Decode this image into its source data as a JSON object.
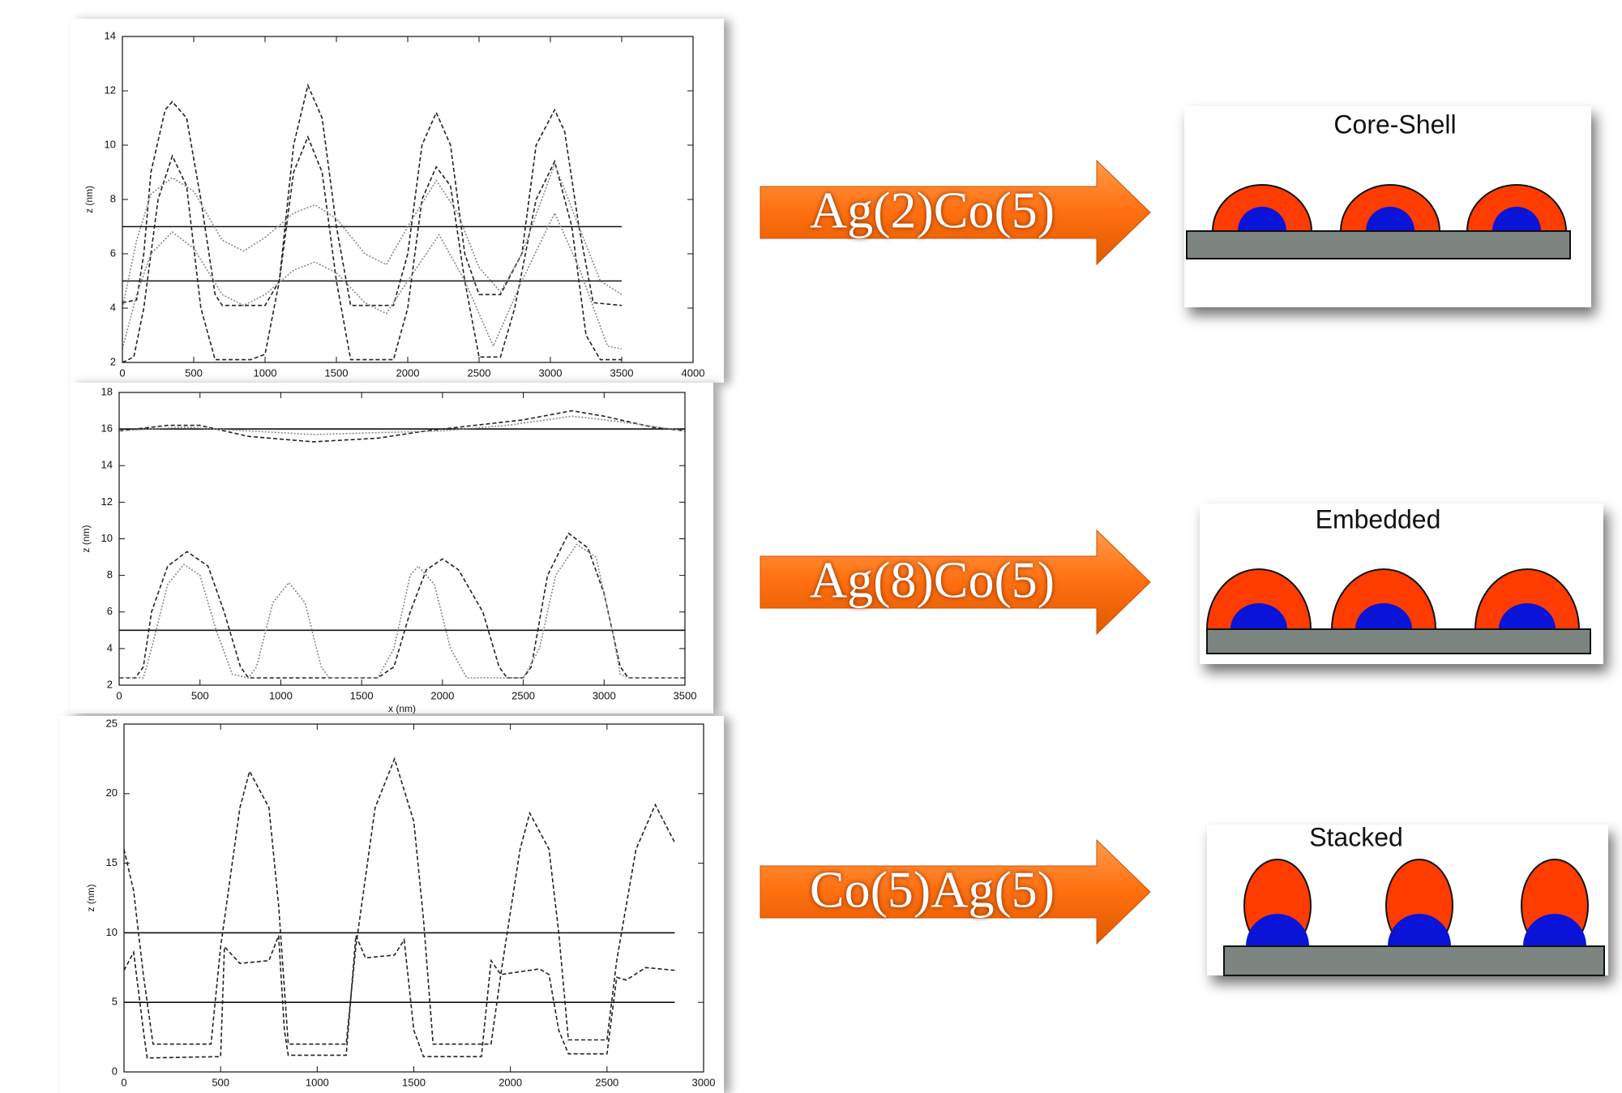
{
  "chart_data": [
    {
      "type": "line",
      "ylabel": "z (nm)",
      "xlim": [
        0,
        4000
      ],
      "ylim": [
        2,
        14
      ],
      "xticks": [
        0,
        500,
        1000,
        1500,
        2000,
        2500,
        3000,
        3500,
        4000
      ],
      "yticks": [
        2,
        4,
        6,
        8,
        10,
        12,
        14
      ],
      "series": [
        {
          "color": "#111111",
          "dash": "solid",
          "x": [
            0,
            3500
          ],
          "values": [
            7,
            7
          ]
        },
        {
          "color": "#111111",
          "dash": "solid",
          "x": [
            0,
            3500
          ],
          "values": [
            5,
            5
          ]
        },
        {
          "color": "#222222",
          "dash": "dashed",
          "x": [
            0,
            100,
            150,
            200,
            300,
            350,
            450,
            550,
            650,
            700,
            1000,
            1100,
            1200,
            1300,
            1400,
            1500,
            1600,
            1900,
            2000,
            2100,
            2200,
            2300,
            2400,
            2500,
            2650,
            2800,
            2900,
            3030,
            3100,
            3200,
            3300,
            3500
          ],
          "values": [
            4.2,
            4.3,
            6,
            9,
            11.3,
            11.6,
            11,
            8,
            4.5,
            4.1,
            4.1,
            5,
            10,
            12.2,
            11,
            7,
            4.1,
            4.1,
            6,
            10,
            11.2,
            10,
            6,
            4.5,
            4.5,
            6,
            10,
            11.3,
            10.5,
            7,
            4.2,
            4.1
          ]
        },
        {
          "color": "#222222",
          "dash": "dashed",
          "x": [
            0,
            80,
            150,
            250,
            350,
            450,
            550,
            650,
            900,
            1000,
            1100,
            1200,
            1300,
            1400,
            1500,
            1600,
            1900,
            2000,
            2100,
            2200,
            2300,
            2400,
            2500,
            2650,
            2750,
            2900,
            3030,
            3150,
            3250,
            3350,
            3500
          ],
          "values": [
            2,
            2.2,
            4,
            8,
            9.6,
            8.5,
            4,
            2.1,
            2.1,
            2.3,
            5,
            9,
            10.3,
            9,
            5,
            2.1,
            2.1,
            4,
            8,
            9.2,
            8.5,
            5,
            2.2,
            2.2,
            4,
            8,
            9.4,
            7,
            3,
            2.1,
            2.1
          ]
        },
        {
          "color": "#888888",
          "dash": "dotted",
          "x": [
            0,
            100,
            200,
            350,
            500,
            700,
            850,
            1000,
            1200,
            1350,
            1500,
            1700,
            1850,
            2000,
            2200,
            2350,
            2500,
            2650,
            2800,
            3030,
            3200,
            3350,
            3500
          ],
          "values": [
            4,
            6.5,
            8.2,
            8.8,
            8.3,
            6.5,
            6.1,
            6.6,
            7.5,
            7.8,
            7.3,
            6,
            5.6,
            7,
            8.7,
            7.5,
            5.5,
            4.6,
            6,
            9.3,
            7,
            5,
            4.5
          ]
        },
        {
          "color": "#888888",
          "dash": "dotted",
          "x": [
            0,
            100,
            200,
            350,
            500,
            700,
            850,
            1000,
            1200,
            1350,
            1500,
            1700,
            1850,
            2000,
            2220,
            2400,
            2600,
            2800,
            3030,
            3200,
            3400,
            3500
          ],
          "values": [
            2.5,
            4.5,
            6,
            6.8,
            6.2,
            4.5,
            4.1,
            4.5,
            5.4,
            5.7,
            5.3,
            4.2,
            3.8,
            5,
            6.7,
            5,
            2.6,
            5,
            7.5,
            5.5,
            2.6,
            2.5
          ]
        }
      ]
    },
    {
      "type": "line",
      "ylabel": "z (nm)",
      "xlabel": "x (nm)",
      "xlim": [
        0,
        3500
      ],
      "ylim": [
        2,
        18
      ],
      "xticks": [
        0,
        500,
        1000,
        1500,
        2000,
        2500,
        3000,
        3500
      ],
      "yticks": [
        2,
        4,
        6,
        8,
        10,
        12,
        14,
        16,
        18
      ],
      "series": [
        {
          "color": "#111111",
          "dash": "solid",
          "x": [
            0,
            3500
          ],
          "values": [
            16,
            16
          ]
        },
        {
          "color": "#111111",
          "dash": "solid",
          "x": [
            0,
            3500
          ],
          "values": [
            5,
            5
          ]
        },
        {
          "color": "#222222",
          "dash": "dashed",
          "x": [
            0,
            300,
            500,
            800,
            1200,
            1600,
            1900,
            2200,
            2500,
            2800,
            3000,
            3300,
            3500
          ],
          "values": [
            15.9,
            16.2,
            16.2,
            15.6,
            15.3,
            15.5,
            15.9,
            16.2,
            16.5,
            17,
            16.7,
            16.1,
            15.9
          ]
        },
        {
          "color": "#888888",
          "dash": "dotted",
          "x": [
            0,
            400,
            800,
            1200,
            1600,
            2000,
            2400,
            2800,
            3100,
            3500
          ],
          "values": [
            15.9,
            16.1,
            15.9,
            15.7,
            15.8,
            15.9,
            16.2,
            16.7,
            16.4,
            15.9
          ]
        },
        {
          "color": "#222222",
          "dash": "dashed",
          "x": [
            0,
            100,
            150,
            200,
            300,
            420,
            550,
            650,
            750,
            800,
            1600,
            1700,
            1800,
            1900,
            2000,
            2100,
            2250,
            2350,
            2400,
            2500,
            2550,
            2650,
            2780,
            2900,
            3000,
            3100,
            3150,
            3500
          ],
          "values": [
            2.4,
            2.4,
            3,
            6,
            8.5,
            9.3,
            8.5,
            6,
            3,
            2.4,
            2.4,
            3,
            6,
            8.3,
            8.9,
            8.3,
            6,
            3,
            2.4,
            2.4,
            3,
            8,
            10.3,
            9.5,
            7,
            3,
            2.4,
            2.4
          ]
        },
        {
          "color": "#888888",
          "dash": "dotted",
          "x": [
            0,
            150,
            200,
            300,
            400,
            500,
            600,
            700,
            800,
            850,
            950,
            1050,
            1150,
            1250,
            1300,
            1600,
            1700,
            1800,
            1850,
            1950,
            2050,
            2150,
            2500,
            2600,
            2700,
            2830,
            2950,
            3050,
            3100,
            3150,
            3500
          ],
          "values": [
            2.4,
            2.4,
            4,
            7.5,
            8.6,
            8,
            5,
            2.6,
            2.4,
            3,
            6.5,
            7.6,
            6.5,
            3,
            2.4,
            2.4,
            4,
            8,
            8.5,
            7.5,
            4,
            2.4,
            2.4,
            4,
            8,
            9.7,
            9,
            5,
            2.6,
            2.4,
            2.4
          ]
        }
      ]
    },
    {
      "type": "line",
      "ylabel": "z (nm)",
      "xlim": [
        0,
        3000
      ],
      "ylim": [
        0,
        25
      ],
      "xticks": [
        0,
        500,
        1000,
        1500,
        2000,
        2500,
        3000
      ],
      "yticks": [
        0,
        5,
        10,
        15,
        20,
        25
      ],
      "series": [
        {
          "color": "#111111",
          "dash": "solid",
          "x": [
            0,
            2850
          ],
          "values": [
            10,
            10
          ]
        },
        {
          "color": "#111111",
          "dash": "solid",
          "x": [
            0,
            2850
          ],
          "values": [
            5,
            5
          ]
        },
        {
          "color": "#222222",
          "dash": "dashed",
          "x": [
            0,
            50,
            100,
            150,
            450,
            500,
            600,
            650,
            750,
            800,
            850,
            1150,
            1200,
            1300,
            1400,
            1500,
            1550,
            1600,
            1900,
            1950,
            2050,
            2100,
            2200,
            2250,
            2300,
            2500,
            2550,
            2650,
            2750,
            2850
          ],
          "values": [
            16,
            13,
            7,
            2,
            2,
            9,
            19,
            21.6,
            19,
            12,
            2,
            2,
            9,
            19,
            22.5,
            18,
            11,
            2,
            2,
            7,
            16,
            18.6,
            16,
            10,
            2.3,
            2.3,
            8,
            16,
            19.2,
            16.5
          ]
        },
        {
          "color": "#222222",
          "dash": "dashed",
          "x": [
            0,
            50,
            100,
            120,
            500,
            520,
            600,
            750,
            800,
            830,
            850,
            1150,
            1200,
            1250,
            1400,
            1450,
            1500,
            1550,
            1850,
            1900,
            1950,
            2150,
            2200,
            2250,
            2300,
            2500,
            2550,
            2600,
            2700,
            2850
          ],
          "values": [
            7.3,
            8.6,
            3,
            1,
            1.1,
            9,
            7.8,
            8,
            9.8,
            3,
            1.2,
            1.2,
            9.8,
            8.2,
            8.4,
            9.5,
            3,
            1.1,
            1.1,
            8,
            7,
            7.4,
            7,
            3,
            1.3,
            1.3,
            6.8,
            6.6,
            7.5,
            7.3
          ]
        }
      ]
    }
  ],
  "panels": [
    {
      "label": "Ag(2)Co(5)",
      "title": "Core-Shell"
    },
    {
      "label": "Ag(8)Co(5)",
      "title": "Embedded"
    },
    {
      "label": "Co(5)Ag(5)",
      "title": "Stacked"
    }
  ]
}
